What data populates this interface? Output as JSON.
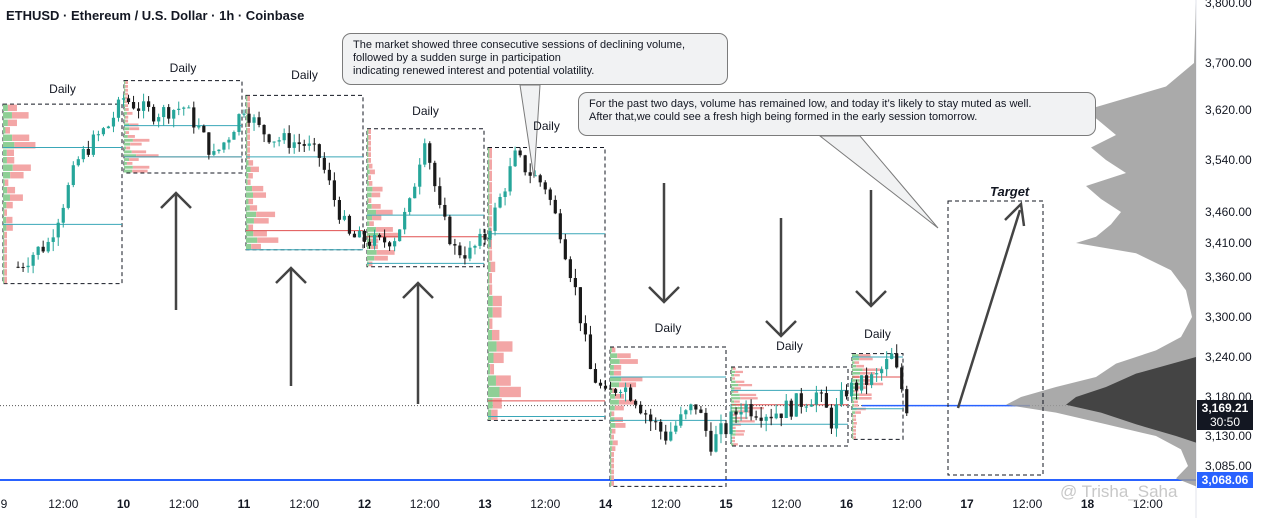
{
  "header": {
    "title": "ETHUSD · Ethereum / U.S. Dollar · 1h · Coinbase"
  },
  "callouts": [
    "The market showed three consecutive sessions of declining volume,\n followed by a sudden surge in participation\n indicating renewed interest and potential volatility.",
    "For the past two days, volume has remained low, and today it’s likely to stay muted as well.\n After that,we could see a fresh high being formed in the early session tomorrow."
  ],
  "day_label_text": "Daily",
  "target_label": "Target",
  "watermark": "@ Trisha_Saha",
  "colors": {
    "up": "#26a69a",
    "down": "#1a1a1a",
    "vp_up": "#8fcf96",
    "vp_down": "#f3a6a6",
    "poc": "#e05050",
    "va": "#3aa7b8",
    "blue": "#2962ff",
    "badge": "#131722"
  },
  "chart_data": {
    "type": "candlestick",
    "title": "ETHUSD · Ethereum / U.S. Dollar · 1h · Coinbase",
    "ylim": [
      3040,
      3800
    ],
    "y_ticks": [
      "3,800.00",
      "3,700.00",
      "3,620.00",
      "3,540.00",
      "3,460.00",
      "3,410.00",
      "3,360.00",
      "3,300.00",
      "3,240.00",
      "3,180.00",
      "3,130.00",
      "3,085.00"
    ],
    "x_ticks": [
      "9",
      "12:00",
      "10",
      "12:00",
      "11",
      "12:00",
      "12",
      "12:00",
      "13",
      "12:00",
      "14",
      "12:00",
      "15",
      "12:00",
      "16",
      "12:00",
      "17",
      "12:00",
      "18",
      "12:00"
    ],
    "x_ticks_bold": [
      false,
      false,
      true,
      false,
      true,
      false,
      true,
      false,
      true,
      false,
      true,
      false,
      true,
      false,
      true,
      false,
      true,
      false,
      true,
      false
    ],
    "last_price": "3,169.21",
    "countdown": "30:50",
    "support_price": "3,068.06",
    "price_path": [
      [
        "9 03:00",
        3375
      ],
      [
        "9 06:00",
        3395
      ],
      [
        "9 09:00",
        3410
      ],
      [
        "9 12:00",
        3475
      ],
      [
        "9 15:00",
        3540
      ],
      [
        "9 18:00",
        3570
      ],
      [
        "9 21:00",
        3595
      ],
      [
        "10 00:00",
        3640
      ],
      [
        "10 03:00",
        3625
      ],
      [
        "10 06:00",
        3615
      ],
      [
        "10 09:00",
        3620
      ],
      [
        "10 12:00",
        3625
      ],
      [
        "10 15:00",
        3590
      ],
      [
        "10 18:00",
        3545
      ],
      [
        "10 21:00",
        3580
      ],
      [
        "11 00:00",
        3625
      ],
      [
        "11 03:00",
        3590
      ],
      [
        "11 06:00",
        3575
      ],
      [
        "11 09:00",
        3570
      ],
      [
        "11 12:00",
        3565
      ],
      [
        "11 15:00",
        3545
      ],
      [
        "11 18:00",
        3480
      ],
      [
        "11 21:00",
        3420
      ],
      [
        "12 00:00",
        3415
      ],
      [
        "12 03:00",
        3410
      ],
      [
        "12 06:00",
        3420
      ],
      [
        "12 09:00",
        3470
      ],
      [
        "12 12:00",
        3580
      ],
      [
        "12 15:00",
        3460
      ],
      [
        "12 18:00",
        3400
      ],
      [
        "12 21:00",
        3395
      ],
      [
        "13 00:00",
        3420
      ],
      [
        "13 03:00",
        3480
      ],
      [
        "13 06:00",
        3545
      ],
      [
        "13 09:00",
        3520
      ],
      [
        "13 12:00",
        3500
      ],
      [
        "13 15:00",
        3430
      ],
      [
        "13 18:00",
        3340
      ],
      [
        "13 21:00",
        3220
      ],
      [
        "14 00:00",
        3180
      ],
      [
        "14 03:00",
        3200
      ],
      [
        "14 06:00",
        3180
      ],
      [
        "14 09:00",
        3150
      ],
      [
        "14 12:00",
        3130
      ],
      [
        "14 15:00",
        3150
      ],
      [
        "14 18:00",
        3170
      ],
      [
        "14 21:00",
        3120
      ],
      [
        "15 00:00",
        3140
      ],
      [
        "15 03:00",
        3170
      ],
      [
        "15 06:00",
        3165
      ],
      [
        "15 09:00",
        3160
      ],
      [
        "15 12:00",
        3165
      ],
      [
        "15 15:00",
        3175
      ],
      [
        "15 18:00",
        3185
      ],
      [
        "15 21:00",
        3150
      ],
      [
        "16 00:00",
        3190
      ],
      [
        "16 03:00",
        3200
      ],
      [
        "16 06:00",
        3210
      ],
      [
        "16 09:00",
        3240
      ],
      [
        "16 12:00",
        3169
      ]
    ],
    "daily_volume_profiles": [
      {
        "label": "Daily",
        "day": "9",
        "high": 3630,
        "low": 3350,
        "poc": 3560,
        "va_high": 3560,
        "va_low": 3440
      },
      {
        "label": "Daily",
        "day": "10",
        "high": 3670,
        "low": 3520,
        "poc": 3545,
        "va_high": 3595,
        "va_low": 3545
      },
      {
        "label": "Daily",
        "day": "11",
        "high": 3645,
        "low": 3400,
        "poc": 3430,
        "va_high": 3545,
        "va_low": 3400
      },
      {
        "label": "Daily",
        "day": "12",
        "high": 3590,
        "low": 3375,
        "poc": 3420,
        "va_high": 3455,
        "va_low": 3380
      },
      {
        "label": "Daily",
        "day": "13",
        "high": 3560,
        "low": 3150,
        "poc": 3175,
        "va_high": 3425,
        "va_low": 3155
      },
      {
        "label": "Daily",
        "day": "14",
        "high": 3255,
        "low": 3060,
        "poc": 3210,
        "va_high": 3210,
        "va_low": 3150
      },
      {
        "label": "Daily",
        "day": "15",
        "high": 3225,
        "low": 3115,
        "poc": 3170,
        "va_high": 3190,
        "va_low": 3145
      },
      {
        "label": "Daily",
        "day": "16",
        "high": 3245,
        "low": 3125,
        "poc": 3210,
        "va_high": 3240,
        "va_low": 3165
      }
    ],
    "annotations": {
      "up_arrows_under": [
        "10",
        "11",
        "12"
      ],
      "down_arrows_over": [
        "14",
        "15",
        "16"
      ],
      "target": {
        "label": "Target",
        "from_price": 3169,
        "to_price": 3470
      }
    }
  }
}
